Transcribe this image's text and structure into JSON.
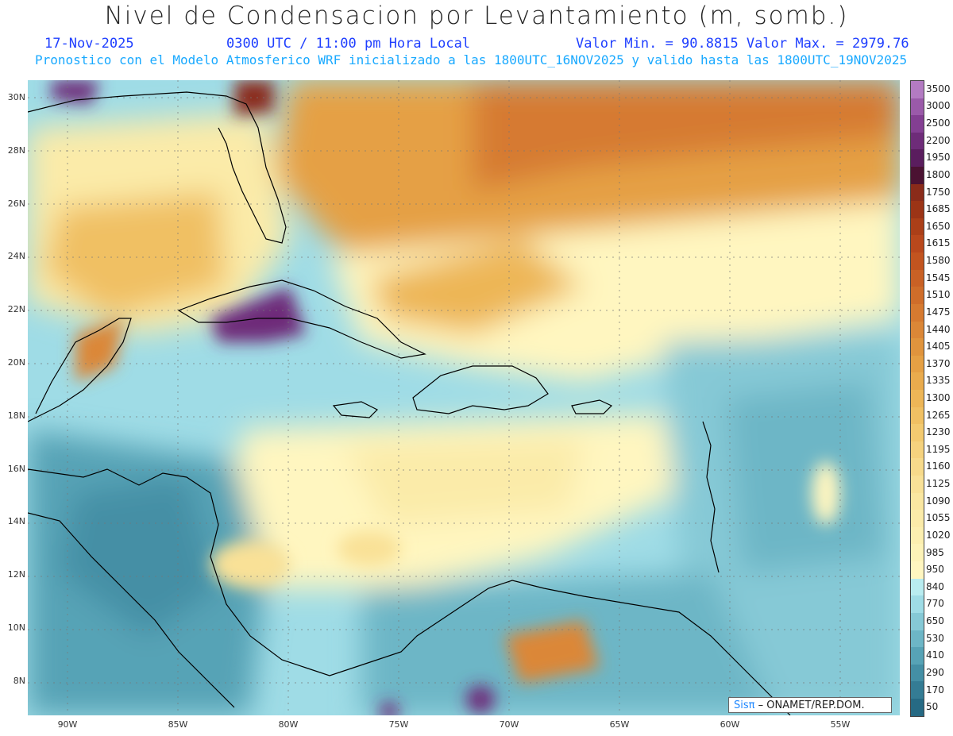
{
  "header": {
    "title": "Nivel de Condensacion por Levantamiento (m, somb.)",
    "date": "17-Nov-2025",
    "time": "0300 UTC / 11:00 pm Hora Local",
    "minmax": "Valor Min. = 90.8815  Valor Max. = 2979.76",
    "info": "Pronostico con el Modelo Atmosferico WRF inicializado a las 1800UTC_16NOV2025 y valido hasta las  1800UTC_19NOV2025"
  },
  "axes": {
    "lat_labels": [
      "30N",
      "28N",
      "26N",
      "24N",
      "22N",
      "20N",
      "18N",
      "16N",
      "14N",
      "12N",
      "10N",
      "8N"
    ],
    "lon_labels": [
      "90W",
      "85W",
      "80W",
      "75W",
      "70W",
      "65W",
      "60W",
      "55W"
    ]
  },
  "legend": {
    "labels": [
      "3500",
      "3000",
      "2500",
      "2200",
      "1950",
      "1800",
      "1750",
      "1685",
      "1650",
      "1615",
      "1580",
      "1545",
      "1510",
      "1475",
      "1440",
      "1405",
      "1370",
      "1335",
      "1300",
      "1265",
      "1230",
      "1195",
      "1160",
      "1125",
      "1090",
      "1055",
      "1020",
      "985",
      "950",
      "840",
      "770",
      "650",
      "530",
      "410",
      "290",
      "170",
      "50"
    ],
    "colors": [
      "#b37bc2",
      "#9a5aa9",
      "#833f92",
      "#6e2c79",
      "#5a1d5e",
      "#4b1232",
      "#8a2b1a",
      "#9c3416",
      "#ab3f18",
      "#b9481c",
      "#c2541f",
      "#c96125",
      "#cf6d2a",
      "#d67a30",
      "#db8737",
      "#e0943d",
      "#e5a044",
      "#e9ab4d",
      "#edb657",
      "#f0c063",
      "#f3ca70",
      "#f5d27e",
      "#f7da8b",
      "#f9e197",
      "#fae7a1",
      "#fbeba9",
      "#fcefb0",
      "#fdf3b8",
      "#fff6c0",
      "#b9ecf0",
      "#9fdce6",
      "#86c9d6",
      "#6db6c6",
      "#57a3b6",
      "#448fa5",
      "#347c94",
      "#266a84"
    ]
  },
  "credit": {
    "logo": "Sisπ",
    "text": "– ONAMET/REP.DOM."
  },
  "palette": {
    "title": "#222222",
    "date_blue": "#1f3fff",
    "info_blue": "#19a9ff",
    "coast": "#000000"
  }
}
